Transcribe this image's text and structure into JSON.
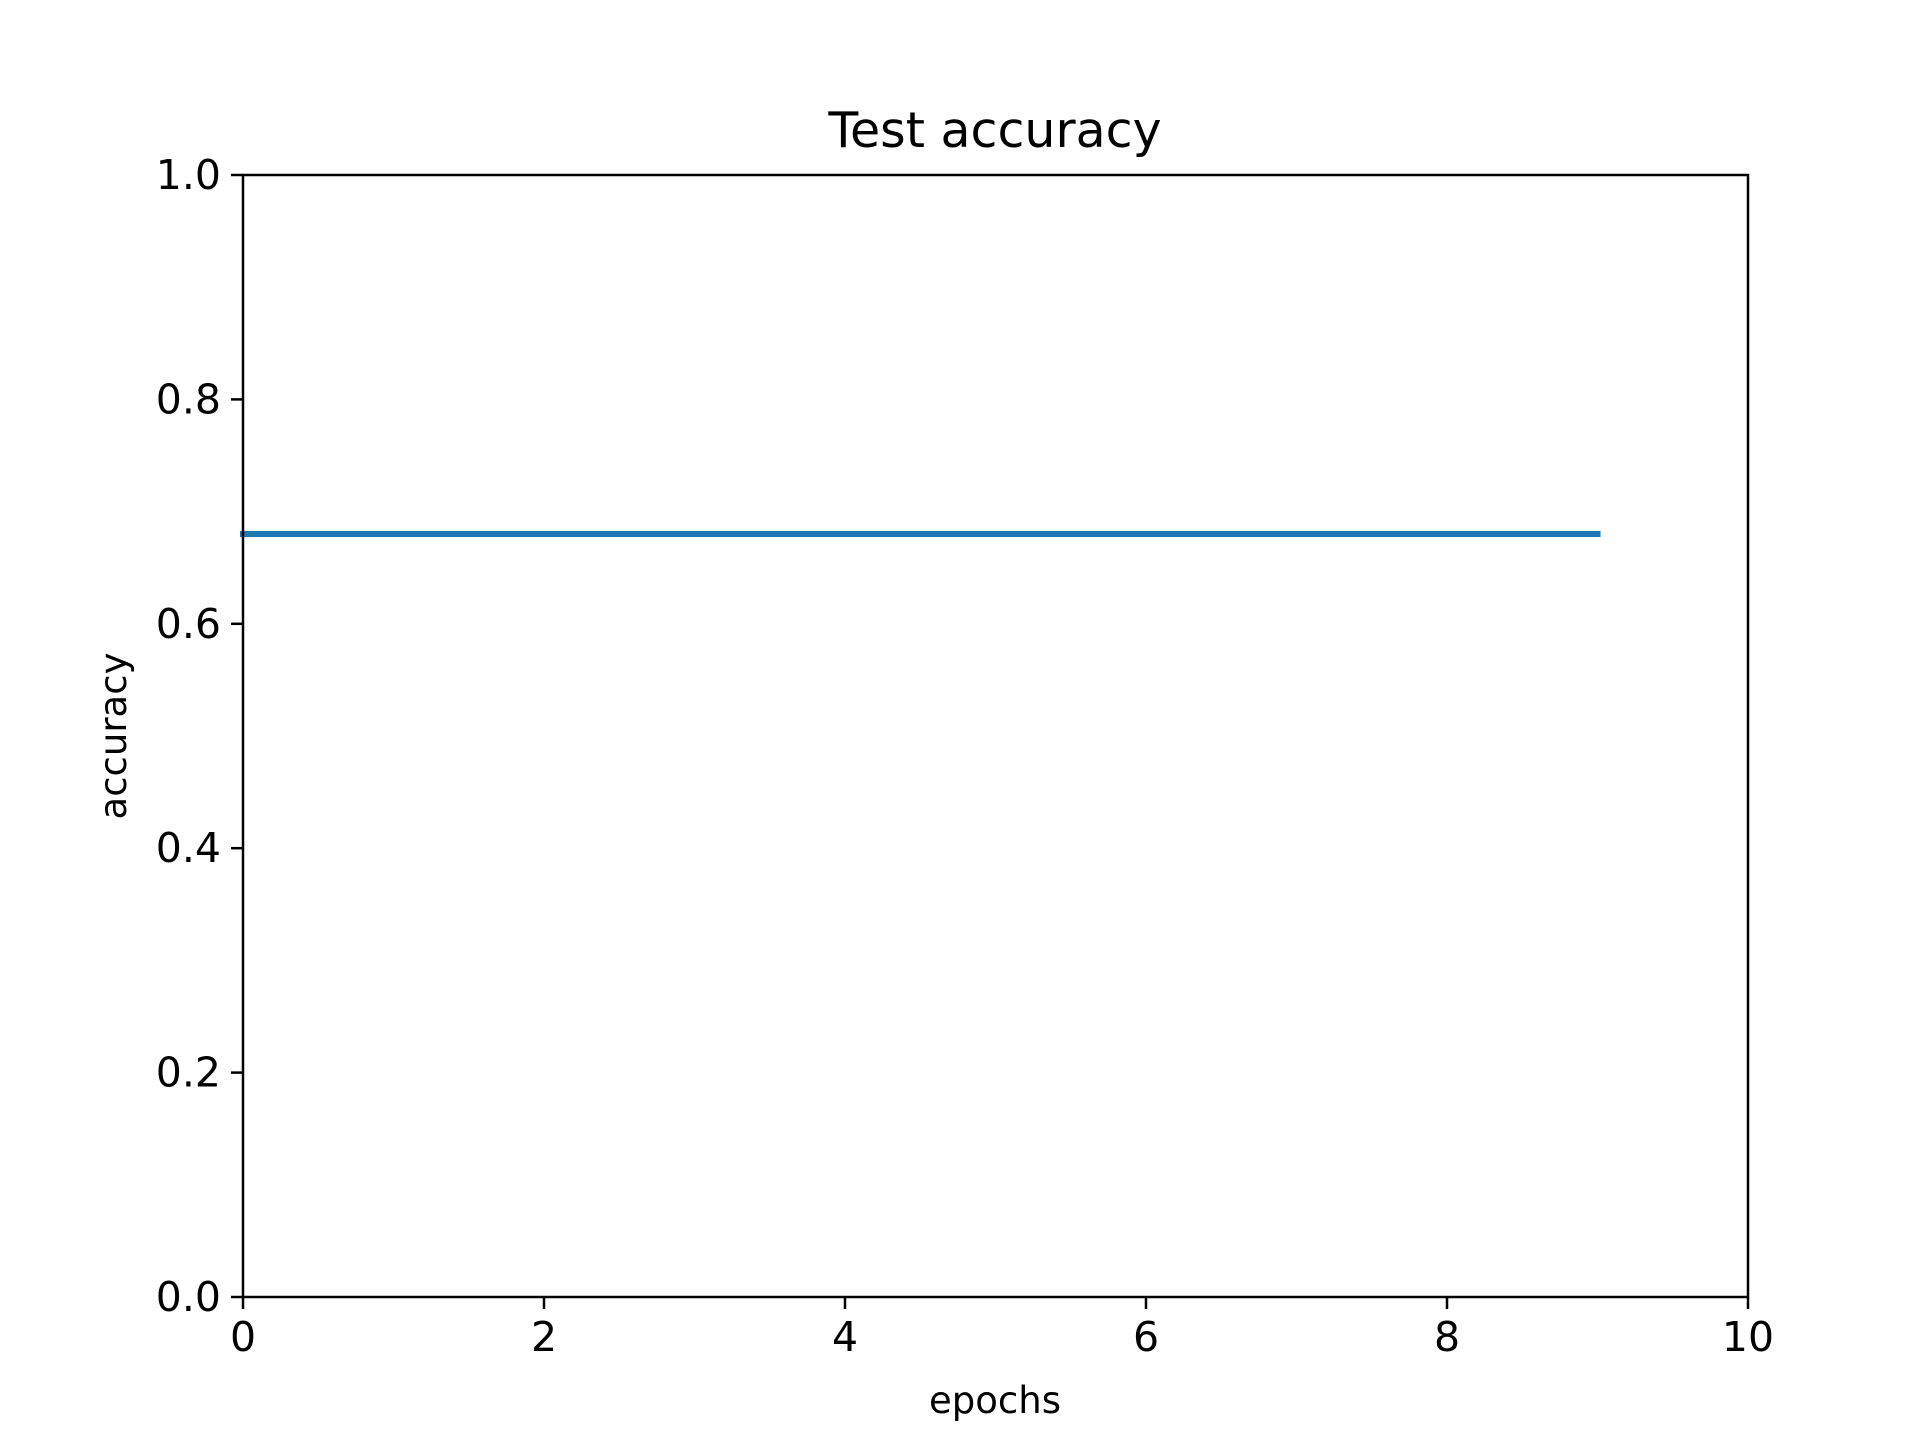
{
  "chart_data": {
    "type": "line",
    "title": "Test accuracy",
    "xlabel": "epochs",
    "ylabel": "accuracy",
    "xlim": [
      0,
      10
    ],
    "ylim": [
      0,
      1
    ],
    "xticks": [
      0,
      2,
      4,
      6,
      8,
      10
    ],
    "xtick_labels": [
      "0",
      "2",
      "4",
      "6",
      "8",
      "10"
    ],
    "yticks": [
      0,
      0.2,
      0.4,
      0.6,
      0.8,
      1.0
    ],
    "ytick_labels": [
      "0.0",
      "0.2",
      "0.4",
      "0.6",
      "0.8",
      "1.0"
    ],
    "grid": false,
    "series": [
      {
        "color": "#1f77b4",
        "x": [
          0,
          1,
          2,
          3,
          4,
          5,
          6,
          7,
          8,
          9
        ],
        "y": [
          0.68,
          0.68,
          0.68,
          0.68,
          0.68,
          0.68,
          0.68,
          0.68,
          0.68,
          0.68
        ]
      }
    ]
  }
}
